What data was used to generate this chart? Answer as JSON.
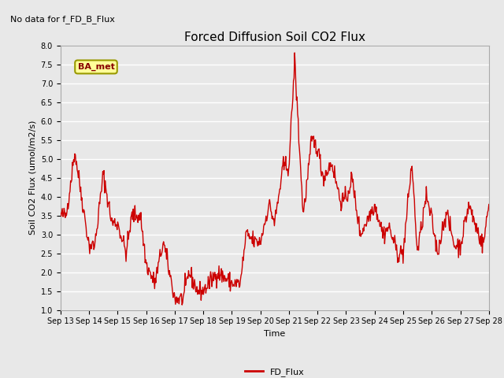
{
  "title": "Forced Diffusion Soil CO2 Flux",
  "subtitle": "No data for f_FD_B_Flux",
  "xlabel": "Time",
  "ylabel": "Soil CO2 Flux (umol/m2/s)",
  "ylim": [
    1.0,
    8.0
  ],
  "yticks": [
    1.0,
    1.5,
    2.0,
    2.5,
    3.0,
    3.5,
    4.0,
    4.5,
    5.0,
    5.5,
    6.0,
    6.5,
    7.0,
    7.5,
    8.0
  ],
  "line_color": "#cc0000",
  "line_width": 1.0,
  "legend_label": "FD_Flux",
  "legend_color": "#cc0000",
  "box_label": "BA_met",
  "box_facecolor": "#ffff99",
  "box_edgecolor": "#999900",
  "box_text_color": "#880000",
  "background_color": "#e8e8e8",
  "plot_bg_color": "#e8e8e8",
  "title_fontsize": 11,
  "subtitle_fontsize": 8,
  "axis_label_fontsize": 8,
  "tick_label_fontsize": 7,
  "grid_color": "#ffffff",
  "grid_linewidth": 1.0,
  "x_tick_days": [
    13,
    14,
    15,
    16,
    17,
    18,
    19,
    20,
    21,
    22,
    23,
    24,
    25,
    26,
    27,
    28
  ]
}
